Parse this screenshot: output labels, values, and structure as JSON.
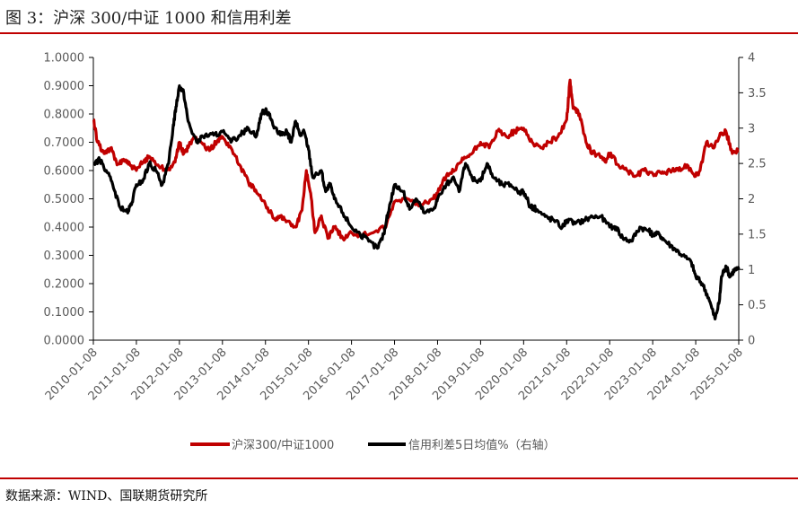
{
  "header": {
    "title": "图 3：沪深 300/中证 1000 和信用利差"
  },
  "footer": {
    "source": "数据来源：WIND、国联期货研究所"
  },
  "colors": {
    "accent": "#c00000",
    "series1": "#c00000",
    "series2": "#000000"
  },
  "chart_data": {
    "type": "line",
    "title": "",
    "x_ticks": [
      "2010-01-08",
      "2011-01-08",
      "2012-01-08",
      "2013-01-08",
      "2014-01-08",
      "2015-01-08",
      "2016-01-08",
      "2017-01-08",
      "2018-01-08",
      "2019-01-08",
      "2020-01-08",
      "2021-01-08",
      "2022-01-08",
      "2023-01-08",
      "2024-01-08",
      "2025-01-08"
    ],
    "x_range": [
      2010.0,
      2025.0
    ],
    "y_left": {
      "range": [
        0,
        1.0
      ],
      "ticks": [
        "0.0000",
        "0.1000",
        "0.2000",
        "0.3000",
        "0.4000",
        "0.5000",
        "0.6000",
        "0.7000",
        "0.8000",
        "0.9000",
        "1.0000"
      ]
    },
    "y_right": {
      "range": [
        0,
        4
      ],
      "ticks": [
        "0",
        "0.5",
        "1",
        "1.5",
        "2",
        "2.5",
        "3",
        "3.5",
        "4"
      ]
    },
    "legend_position": "bottom",
    "grid": false,
    "series": [
      {
        "name": "沪深300/中证1000",
        "axis": "left",
        "color": "#c00000",
        "x": [
          2010.0,
          2010.1,
          2010.25,
          2010.4,
          2010.55,
          2010.7,
          2010.85,
          2011.0,
          2011.15,
          2011.3,
          2011.5,
          2011.7,
          2011.9,
          2012.0,
          2012.1,
          2012.2,
          2012.35,
          2012.5,
          2012.7,
          2012.9,
          2013.0,
          2013.2,
          2013.4,
          2013.6,
          2013.8,
          2014.0,
          2014.2,
          2014.35,
          2014.5,
          2014.7,
          2014.85,
          2014.95,
          2015.05,
          2015.15,
          2015.3,
          2015.45,
          2015.6,
          2015.8,
          2016.0,
          2016.2,
          2016.5,
          2016.8,
          2017.0,
          2017.3,
          2017.6,
          2017.9,
          2018.0,
          2018.2,
          2018.4,
          2018.6,
          2018.8,
          2019.0,
          2019.2,
          2019.4,
          2019.6,
          2019.8,
          2020.0,
          2020.2,
          2020.4,
          2020.6,
          2020.8,
          2021.0,
          2021.08,
          2021.15,
          2021.3,
          2021.45,
          2021.6,
          2021.75,
          2021.9,
          2022.0,
          2022.2,
          2022.4,
          2022.6,
          2022.8,
          2023.0,
          2023.2,
          2023.4,
          2023.6,
          2023.8,
          2024.0,
          2024.1,
          2024.25,
          2024.4,
          2024.55,
          2024.7,
          2024.85,
          2025.0
        ],
        "y": [
          0.78,
          0.7,
          0.66,
          0.68,
          0.62,
          0.64,
          0.62,
          0.6,
          0.63,
          0.65,
          0.62,
          0.6,
          0.63,
          0.7,
          0.66,
          0.68,
          0.72,
          0.7,
          0.67,
          0.71,
          0.72,
          0.68,
          0.62,
          0.56,
          0.52,
          0.48,
          0.43,
          0.44,
          0.42,
          0.4,
          0.46,
          0.6,
          0.52,
          0.38,
          0.44,
          0.36,
          0.4,
          0.36,
          0.38,
          0.37,
          0.38,
          0.4,
          0.49,
          0.5,
          0.48,
          0.5,
          0.52,
          0.58,
          0.6,
          0.64,
          0.66,
          0.7,
          0.68,
          0.74,
          0.72,
          0.74,
          0.75,
          0.7,
          0.68,
          0.7,
          0.72,
          0.78,
          0.92,
          0.82,
          0.8,
          0.7,
          0.66,
          0.66,
          0.63,
          0.66,
          0.62,
          0.6,
          0.58,
          0.6,
          0.59,
          0.59,
          0.6,
          0.6,
          0.62,
          0.58,
          0.6,
          0.7,
          0.68,
          0.72,
          0.74,
          0.66,
          0.67
        ]
      },
      {
        "name": "信用利差5日均值%（右轴）",
        "axis": "right",
        "color": "#000000",
        "x": [
          2010.0,
          2010.15,
          2010.3,
          2010.45,
          2010.6,
          2010.8,
          2010.9,
          2011.0,
          2011.15,
          2011.3,
          2011.45,
          2011.6,
          2011.75,
          2011.85,
          2011.92,
          2012.0,
          2012.1,
          2012.2,
          2012.4,
          2012.6,
          2012.8,
          2013.0,
          2013.2,
          2013.4,
          2013.6,
          2013.8,
          2013.9,
          2014.0,
          2014.1,
          2014.2,
          2014.35,
          2014.5,
          2014.6,
          2014.7,
          2014.8,
          2014.9,
          2015.0,
          2015.1,
          2015.3,
          2015.4,
          2015.5,
          2015.6,
          2015.8,
          2016.0,
          2016.2,
          2016.4,
          2016.6,
          2016.75,
          2016.85,
          2017.0,
          2017.2,
          2017.35,
          2017.5,
          2017.7,
          2017.9,
          2018.0,
          2018.2,
          2018.35,
          2018.5,
          2018.65,
          2018.8,
          2019.0,
          2019.15,
          2019.3,
          2019.5,
          2019.7,
          2019.9,
          2020.0,
          2020.15,
          2020.3,
          2020.5,
          2020.7,
          2020.9,
          2021.0,
          2021.2,
          2021.4,
          2021.6,
          2021.8,
          2022.0,
          2022.15,
          2022.3,
          2022.5,
          2022.7,
          2022.9,
          2023.0,
          2023.15,
          2023.3,
          2023.5,
          2023.7,
          2023.9,
          2024.0,
          2024.15,
          2024.3,
          2024.45,
          2024.55,
          2024.6,
          2024.7,
          2024.8,
          2024.9,
          2025.0
        ],
        "y": [
          2.5,
          2.55,
          2.4,
          2.2,
          1.9,
          1.8,
          1.95,
          2.2,
          2.25,
          2.5,
          2.4,
          2.2,
          2.5,
          3.0,
          3.3,
          3.6,
          3.5,
          3.1,
          2.8,
          2.9,
          2.9,
          2.95,
          2.8,
          2.9,
          3.0,
          2.9,
          3.2,
          3.25,
          3.2,
          3.0,
          2.9,
          2.95,
          2.8,
          3.1,
          2.9,
          2.95,
          2.7,
          2.3,
          2.4,
          2.1,
          2.2,
          2.0,
          1.8,
          1.6,
          1.5,
          1.4,
          1.3,
          1.5,
          1.8,
          2.2,
          2.1,
          1.85,
          2.0,
          1.8,
          1.85,
          2.0,
          2.2,
          2.3,
          2.1,
          2.5,
          2.3,
          2.25,
          2.5,
          2.3,
          2.2,
          2.2,
          2.1,
          2.1,
          1.9,
          1.85,
          1.75,
          1.7,
          1.6,
          1.7,
          1.65,
          1.7,
          1.75,
          1.75,
          1.6,
          1.6,
          1.45,
          1.4,
          1.6,
          1.55,
          1.5,
          1.5,
          1.4,
          1.3,
          1.2,
          1.1,
          0.9,
          0.8,
          0.6,
          0.3,
          0.55,
          0.9,
          1.05,
          0.9,
          1.0,
          1.0
        ]
      }
    ]
  }
}
